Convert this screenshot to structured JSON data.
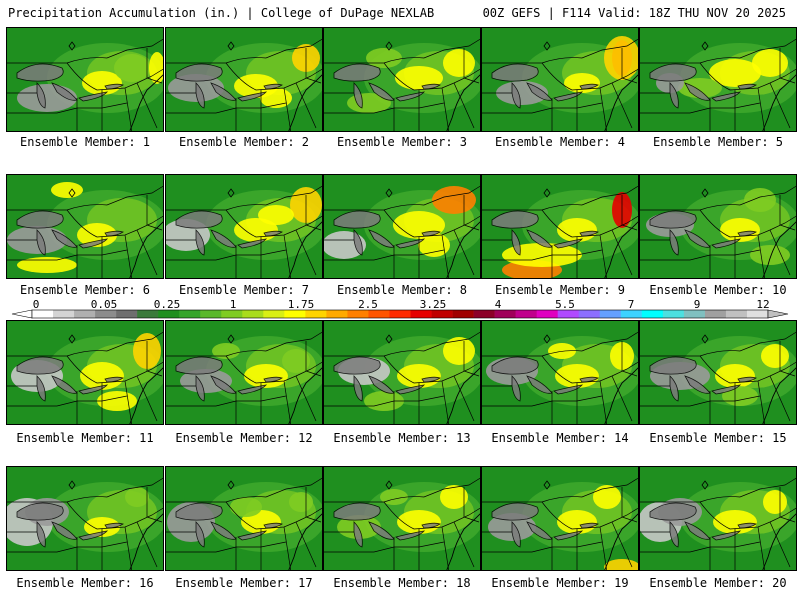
{
  "header": {
    "title_left": "Precipitation Accumulation (in.) | College of DuPage NEXLAB",
    "title_right": "00Z GEFS | F114 Valid: 18Z THU NOV 20 2025"
  },
  "member_label_prefix": "Ensemble Member:",
  "members": [
    "1",
    "2",
    "3",
    "4",
    "5",
    "6",
    "7",
    "8",
    "9",
    "10",
    "11",
    "12",
    "13",
    "14",
    "15",
    "16",
    "17",
    "18",
    "19",
    "20"
  ],
  "colorbar": {
    "labels": [
      "0",
      "0.05",
      "0.25",
      "1",
      "1.75",
      "2.5",
      "3.25",
      "4",
      "5.5",
      "7",
      "9",
      "12"
    ],
    "colors": [
      "#ffffff",
      "#d4d4d4",
      "#b0b0b0",
      "#8c8c8c",
      "#6e6e6e",
      "#3a7a3a",
      "#1f8f1f",
      "#35a52a",
      "#5ab82a",
      "#7fcc22",
      "#a9dc1c",
      "#d9ef14",
      "#ffff00",
      "#ffd400",
      "#ffaa00",
      "#ff8000",
      "#ff5500",
      "#ff2a00",
      "#e60000",
      "#c00000",
      "#a00000",
      "#8c0028",
      "#a0005a",
      "#c0008c",
      "#e000c0",
      "#b04aff",
      "#8c6eff",
      "#64a0ff",
      "#3cd2ff",
      "#00ffff",
      "#4ce0e0",
      "#80c0c0",
      "#a0a0a0",
      "#c0c0c0",
      "#e0e0e0"
    ]
  },
  "map_colors": {
    "base_green": "#1f8f1f",
    "mid_green": "#3aa52a",
    "light_green": "#7fcc22",
    "yellow": "#ffff00",
    "gold": "#ffd400",
    "orange": "#ff8000",
    "red": "#e60000",
    "gray": "#9a9a9a",
    "light_gray": "#c8c8c8"
  }
}
